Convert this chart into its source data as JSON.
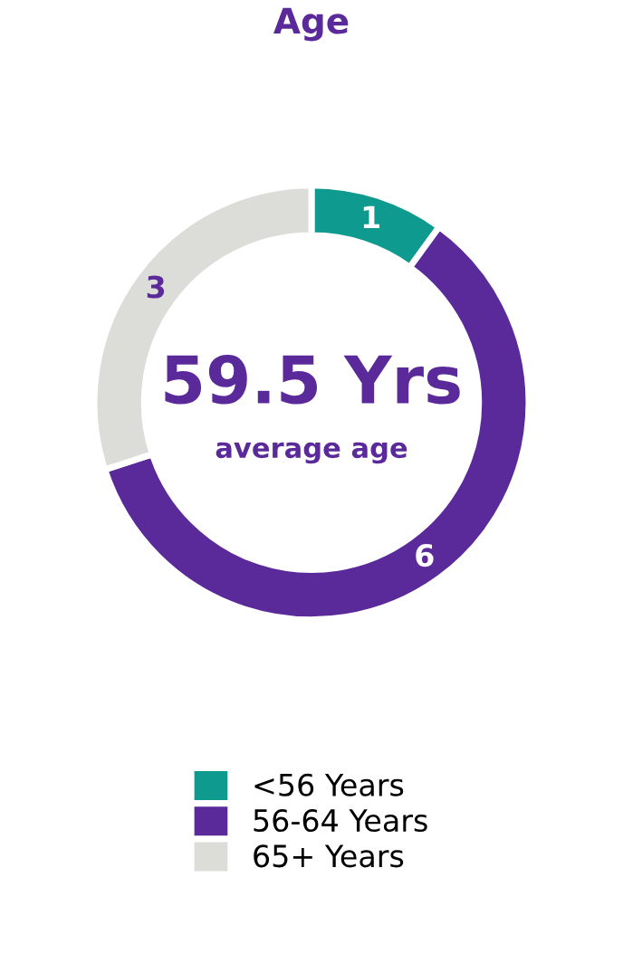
{
  "chart_data": {
    "type": "donut",
    "title": "Age",
    "categories": [
      "<56 Years",
      "56-64 Years",
      "65+ Years"
    ],
    "values": [
      1,
      6,
      3
    ],
    "colors": [
      "#0e9a8f",
      "#5b2a9a",
      "#dcdcd8"
    ],
    "data_labels": true,
    "legend": "bottom",
    "annotations": [
      "59.5 Yrs",
      "average age"
    ]
  }
}
